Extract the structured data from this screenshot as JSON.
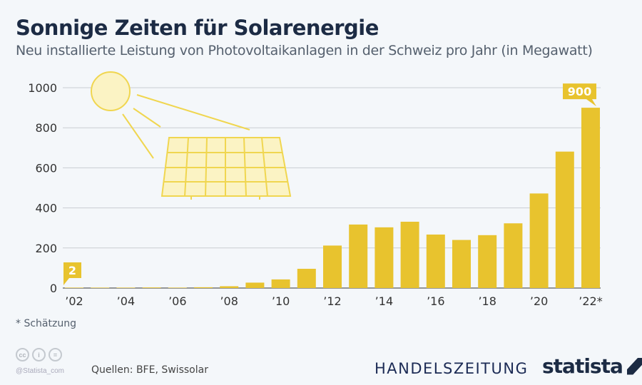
{
  "title": "Sonnige Zeiten für Solarenergie",
  "subtitle": "Neu installierte Leistung von Photovoltaikanlagen in der Schweiz pro Jahr (in Megawatt)",
  "footnote": "* Schätzung",
  "source": "Quellen: BFE, Swissolar",
  "handle": "@Statista_com",
  "brand1": "HANDELSZEITUNG",
  "brand2": "statista",
  "colors": {
    "bar": "#e8c32e",
    "grid": "#c9cdd2",
    "text": "#1c2b44"
  },
  "chart_data": {
    "type": "bar",
    "categories": [
      "2002",
      "2003",
      "2004",
      "2005",
      "2006",
      "2007",
      "2008",
      "2009",
      "2010",
      "2011",
      "2012",
      "2013",
      "2014",
      "2015",
      "2016",
      "2017",
      "2018",
      "2019",
      "2020",
      "2021",
      "2022*"
    ],
    "values": [
      2,
      1,
      1,
      3,
      1,
      4,
      9,
      27,
      43,
      96,
      212,
      317,
      303,
      331,
      267,
      240,
      264,
      323,
      472,
      681,
      900
    ],
    "xtick_labels": [
      "’02",
      "’04",
      "’06",
      "’08",
      "’10",
      "’12",
      "’14",
      "’16",
      "’18",
      "’20",
      "’22*"
    ],
    "yticks": [
      0,
      200,
      400,
      600,
      800,
      1000
    ],
    "ylim": [
      0,
      1000
    ],
    "grid": true,
    "annotations": [
      {
        "category": "2002",
        "text": "2"
      },
      {
        "category": "2022*",
        "text": "900"
      }
    ]
  }
}
